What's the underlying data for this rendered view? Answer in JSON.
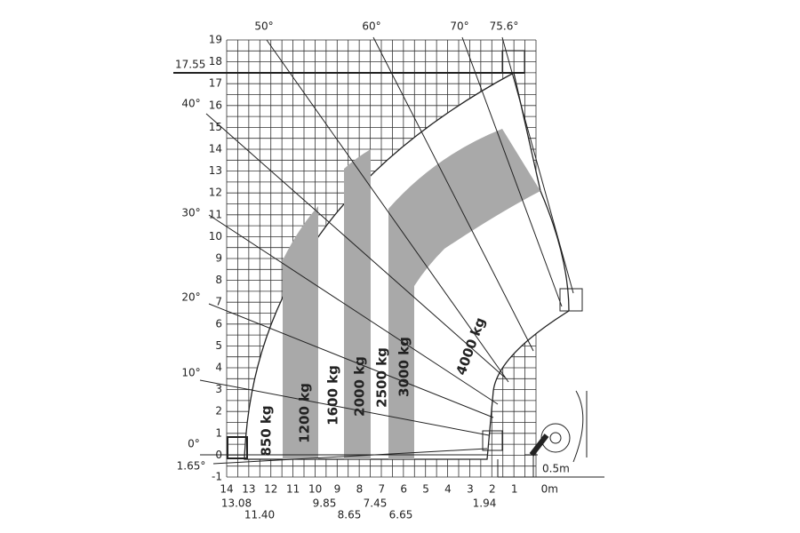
{
  "y_axis_labels": [
    "19",
    "18",
    "17",
    "16",
    "15",
    "14",
    "13",
    "12",
    "11",
    "10",
    "9",
    "8",
    "7",
    "6",
    "5",
    "4",
    "3",
    "2",
    "1",
    "0",
    "-1"
  ],
  "x_axis_labels": [
    "14",
    "13",
    "12",
    "11",
    "10",
    "9",
    "8",
    "7",
    "6",
    "5",
    "4",
    "3",
    "2",
    "1",
    "0m"
  ],
  "x_sub_labels": [
    "13.08",
    "11.40",
    "9.85",
    "8.65",
    "7.45",
    "6.65",
    "1.94"
  ],
  "angle_labels": [
    "50°",
    "60°",
    "70°",
    "75.6°",
    "40°",
    "30°",
    "20°",
    "10°",
    "0°",
    "1.65°"
  ],
  "height_mark": "17.55",
  "load_labels": [
    "850 kg",
    "1200 kg",
    "1600 kg",
    "2000 kg",
    "2500 kg",
    "3000 kg",
    "4000 kg"
  ],
  "distance_label": "0.5m"
}
